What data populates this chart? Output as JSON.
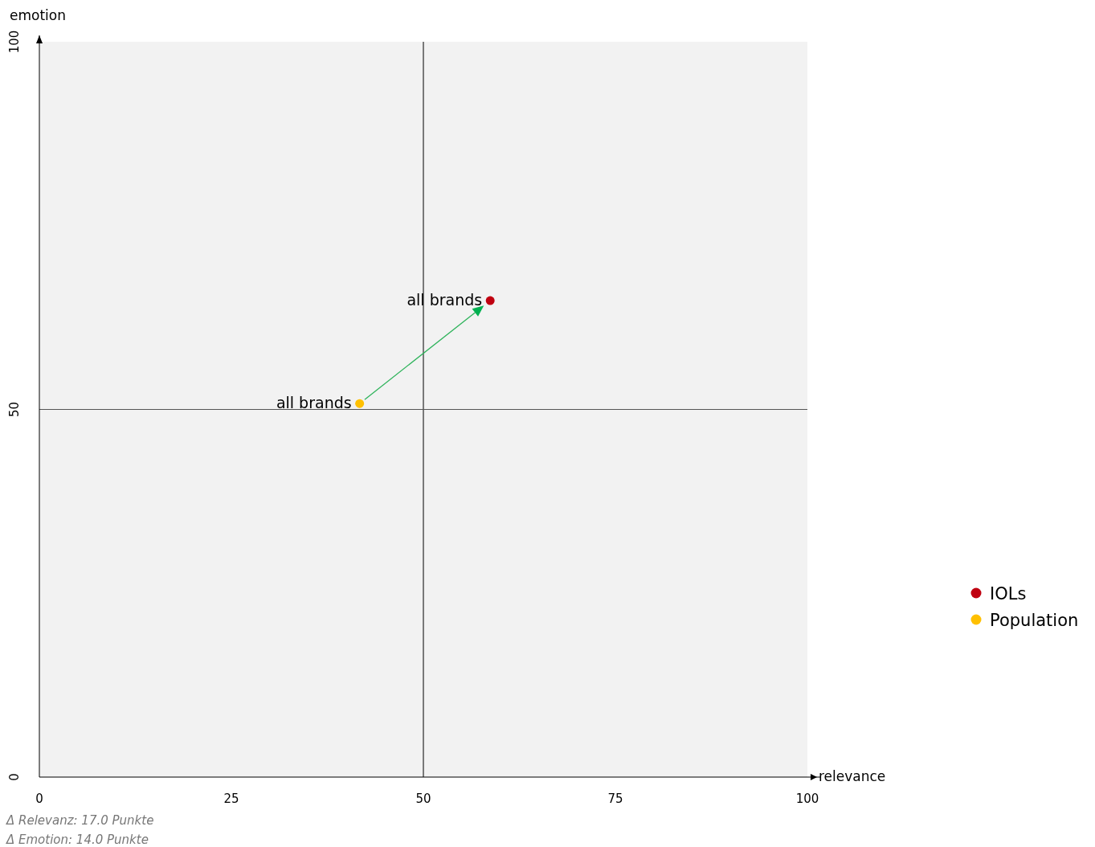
{
  "chart_data": {
    "type": "scatter",
    "xlabel": "relevance",
    "ylabel": "emotion",
    "xlim": [
      0,
      100
    ],
    "ylim": [
      0,
      100
    ],
    "xticks": [
      0,
      25,
      50,
      75,
      100
    ],
    "yticks": [
      0,
      50,
      100
    ],
    "series": [
      {
        "name": "IOLs",
        "color": "#c00010",
        "x": [
          58.7
        ],
        "values": [
          64.8
        ]
      },
      {
        "name": "Population",
        "color": "#ffc000",
        "x": [
          41.7
        ],
        "values": [
          50.8
        ]
      }
    ],
    "marker": "circle",
    "grid": false,
    "legend": "right",
    "ref_lines": [
      {
        "axis": "x",
        "value": 50,
        "color": "#000000"
      },
      {
        "axis": "y",
        "value": 50,
        "color": "#555555"
      }
    ],
    "annotations": [
      {
        "text": "all brands",
        "x": 58.7,
        "y": 64.8
      },
      {
        "text": "all brands",
        "x": 41.7,
        "y": 50.8
      },
      "Δ Relevanz: 17.0 Punkte",
      "Δ Emotion: 14.0 Punkte"
    ]
  }
}
